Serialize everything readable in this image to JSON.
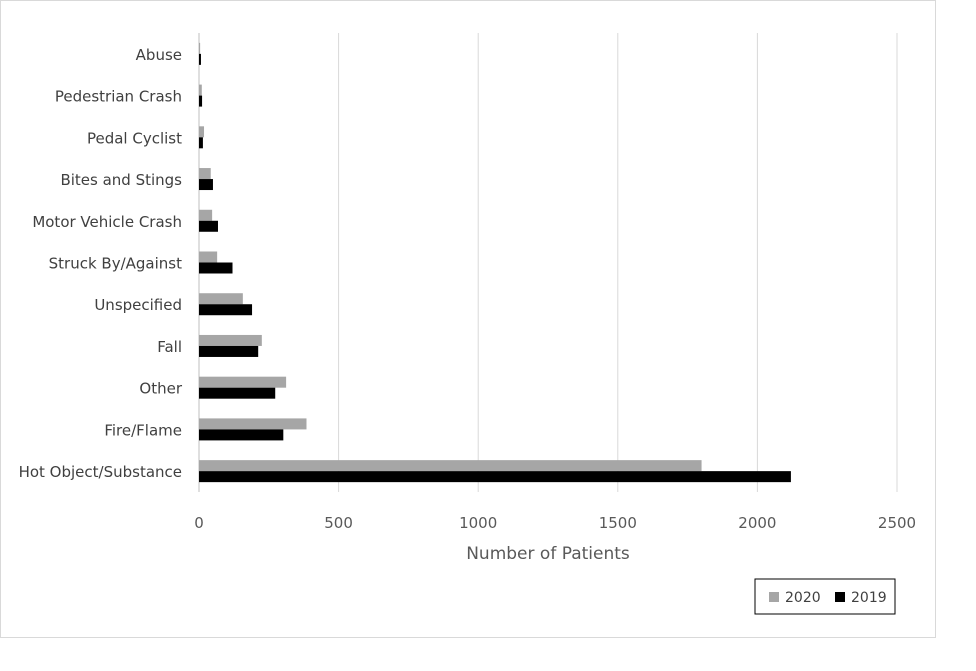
{
  "chart_data": {
    "type": "bar",
    "orientation": "horizontal",
    "categories": [
      "Hot Object/Substance",
      "Fire/Flame",
      "Other",
      "Fall",
      "Unspecified",
      "Struck By/Against",
      "Motor Vehicle Crash",
      "Bites and Stings",
      "Pedal Cyclist",
      "Pedestrian Crash",
      "Abuse"
    ],
    "series": [
      {
        "name": "2020",
        "color": "#a6a6a6",
        "values": [
          1800,
          385,
          312,
          225,
          157,
          65,
          47,
          42,
          18,
          10,
          4
        ]
      },
      {
        "name": "2019",
        "color": "#000000",
        "values": [
          2120,
          302,
          273,
          212,
          190,
          120,
          68,
          50,
          14,
          11,
          7
        ]
      }
    ],
    "xlabel": "Number of Patients",
    "ylabel": "",
    "xlim": [
      0,
      2500
    ],
    "xticks": [
      "0",
      "500",
      "1000",
      "1500",
      "2000",
      "2500"
    ],
    "grid": "vertical",
    "legend_position": "bottom-right"
  }
}
